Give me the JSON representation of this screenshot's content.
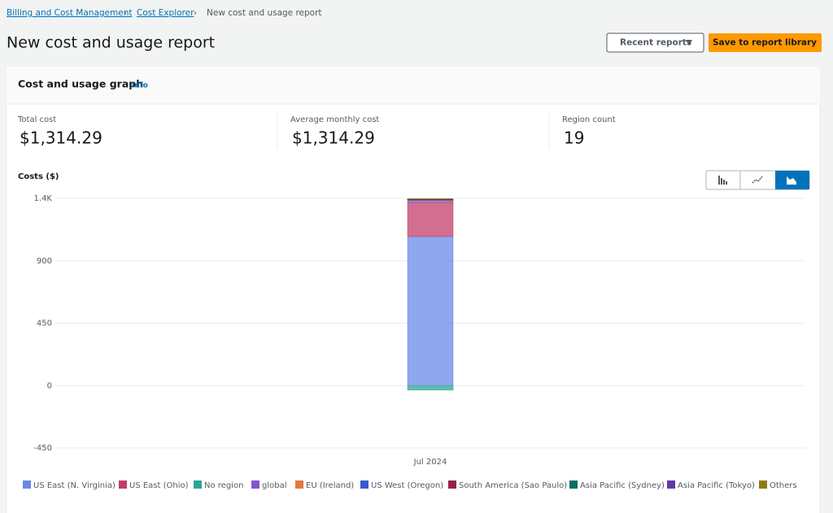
{
  "breadcrumbs": [
    "Billing and Cost Management",
    "Cost Explorer",
    "New cost and usage report"
  ],
  "title": "New cost and usage report",
  "buttons": {
    "recent": "Recent reports",
    "save": "Save to report library"
  },
  "panel": {
    "title": "Cost and usage graph",
    "info": "Info"
  },
  "summary": [
    {
      "label": "Total cost",
      "value": "$1,314.29"
    },
    {
      "label": "Average monthly cost",
      "value": "$1,314.29"
    },
    {
      "label": "Region count",
      "value": "19"
    }
  ],
  "chart_data": {
    "type": "bar",
    "stacked": true,
    "y_label": "Costs ($)",
    "categories": [
      "Jul 2024"
    ],
    "ylim": [
      -450,
      1350
    ],
    "yticks": [
      -450,
      0,
      450,
      900,
      {
        "value": 1350,
        "label": "1.4K"
      }
    ],
    "grid": true,
    "series": [
      {
        "name": "US East (N. Virginia)",
        "color": "#688ae8",
        "values": [
          1075
        ]
      },
      {
        "name": "US East (Ohio)",
        "color": "#c33d69",
        "values": [
          245
        ]
      },
      {
        "name": "No region",
        "color": "#2ea597",
        "values": [
          -33
        ]
      },
      {
        "name": "global",
        "color": "#8456ce",
        "values": [
          12
        ]
      },
      {
        "name": "EU (Ireland)",
        "color": "#e07941",
        "values": [
          4
        ]
      },
      {
        "name": "US West (Oregon)",
        "color": "#3759ce",
        "values": [
          3
        ]
      },
      {
        "name": "South America (Sao Paulo)",
        "color": "#962249",
        "values": [
          3
        ]
      },
      {
        "name": "Asia Pacific (Sydney)",
        "color": "#096f64",
        "values": [
          2
        ]
      },
      {
        "name": "Asia Pacific (Tokyo)",
        "color": "#6237a7",
        "values": [
          2
        ]
      },
      {
        "name": "Others",
        "color": "#8f7a0f",
        "values": [
          2
        ]
      }
    ]
  }
}
